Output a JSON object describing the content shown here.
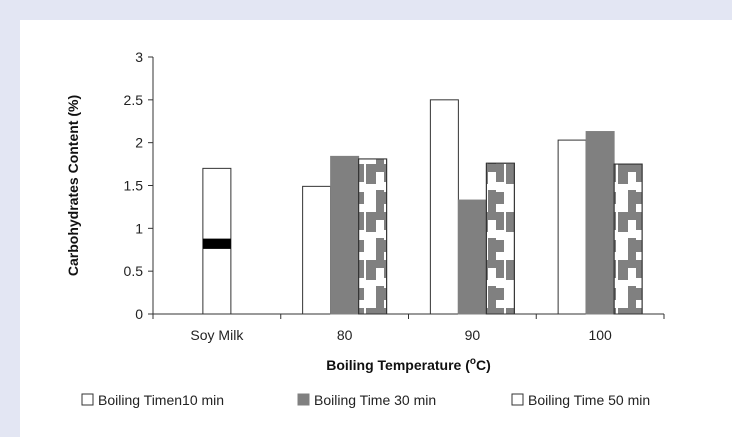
{
  "chart_data": {
    "type": "bar",
    "categories": [
      "Soy Milk",
      "80",
      "90",
      "100"
    ],
    "series": [
      {
        "name": "Boiling Timen10 min",
        "values": [
          1.7,
          1.49,
          2.5,
          2.03
        ],
        "style": "white"
      },
      {
        "name": "Boiling Time 30 min",
        "values": [
          null,
          1.84,
          1.33,
          2.13
        ],
        "style": "gray"
      },
      {
        "name": "Boiling Time 50 min",
        "values": [
          null,
          1.81,
          1.76,
          1.75
        ],
        "style": "white-gray-pattern"
      }
    ],
    "xlabel": "Boiling Temperature (",
    "xlabel_sup": "o",
    "xlabel_end": "C)",
    "ylabel": "Carbohydrates Content (%)",
    "ylim": [
      0,
      3
    ],
    "yticks": [
      "0",
      "0.5",
      "1",
      "1.5",
      "2",
      "2.5",
      "3"
    ],
    "grid": false,
    "legend_position": "bottom",
    "colors": {
      "white": "#ffffff",
      "gray": "#808080",
      "outline": "#333333",
      "marker": "#000000"
    }
  }
}
